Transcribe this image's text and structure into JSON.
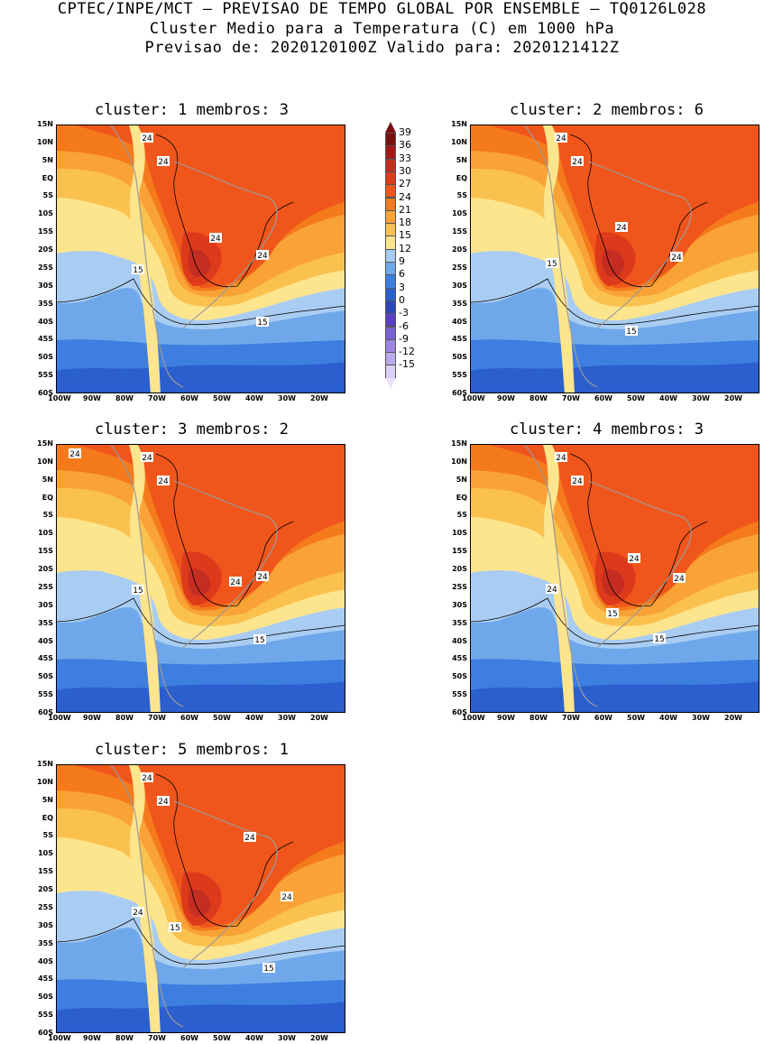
{
  "header": {
    "line1": "CPTEC/INPE/MCT – PREVISAO DE TEMPO GLOBAL POR ENSEMBLE – TQ0126L028",
    "line2": "Cluster Medio para a Temperatura (C) em 1000 hPa",
    "line3": "Previsao de: 2020120100Z   Valido para: 2020121412Z"
  },
  "axes": {
    "lat_labels": [
      "15N",
      "10N",
      "5N",
      "EQ",
      "5S",
      "10S",
      "15S",
      "20S",
      "25S",
      "30S",
      "35S",
      "40S",
      "45S",
      "50S",
      "55S",
      "60S"
    ],
    "lon_labels": [
      "100W",
      "90W",
      "80W",
      "70W",
      "60W",
      "50W",
      "40W",
      "30W",
      "20W"
    ]
  },
  "colorbar": {
    "labels": [
      "39",
      "36",
      "33",
      "30",
      "27",
      "24",
      "21",
      "18",
      "15",
      "12",
      "9",
      "6",
      "3",
      "0",
      "-3",
      "-6",
      "-9",
      "-12",
      "-15"
    ],
    "colors": [
      "#7a0f0f",
      "#a31717",
      "#c62d22",
      "#dd3a1c",
      "#f0561b",
      "#f47a1c",
      "#f9a235",
      "#fbc14e",
      "#fde58e",
      "#a9cdf2",
      "#6fa8ea",
      "#3d7ee0",
      "#2a5fcd",
      "#2b46b8",
      "#5a3fc6",
      "#7a62d6",
      "#9c86e2",
      "#bcaaed",
      "#dcd0f6"
    ]
  },
  "panels": [
    {
      "title": "cluster: 1   membros: 3",
      "contour_labels": [
        "24",
        "24",
        "24",
        "24",
        "15",
        "15"
      ]
    },
    {
      "title": "cluster: 2   membros: 6",
      "contour_labels": [
        "24",
        "24",
        "24",
        "24",
        "15",
        "15"
      ]
    },
    {
      "title": "cluster: 3   membros: 2",
      "contour_labels": [
        "24",
        "24",
        "24",
        "24",
        "24",
        "15",
        "15"
      ]
    },
    {
      "title": "cluster: 4   membros: 3",
      "contour_labels": [
        "24",
        "24",
        "24",
        "24",
        "24",
        "15",
        "15"
      ]
    },
    {
      "title": "cluster: 5   membros: 1",
      "contour_labels": [
        "24",
        "24",
        "24",
        "24",
        "24",
        "15",
        "15"
      ]
    }
  ]
}
